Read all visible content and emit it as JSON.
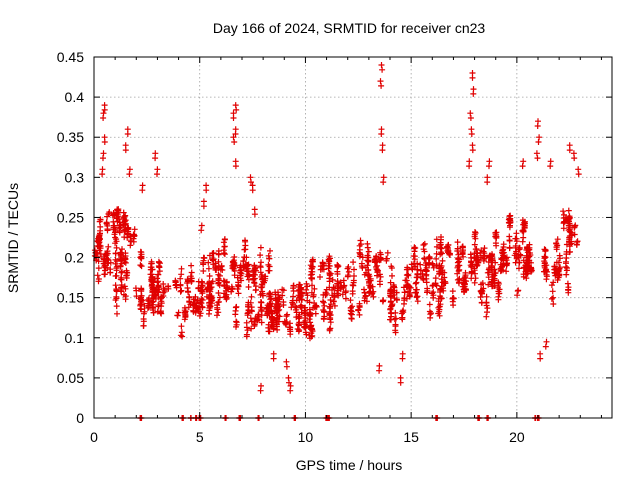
{
  "chart_data": {
    "type": "scatter",
    "title": "Day 166 of 2024, SRMTID for receiver cn23",
    "xlabel": "GPS time / hours",
    "ylabel": "SRMTID / TECUs",
    "xlim": [
      0,
      24.5
    ],
    "ylim": [
      0,
      0.45
    ],
    "grid": true,
    "marker": "+",
    "color": "#e00000",
    "x_ticks": [
      0,
      5,
      10,
      15,
      20
    ],
    "x_tick_labels": [
      "0",
      "5",
      "10",
      "15",
      "20"
    ],
    "y_ticks": [
      0,
      0.05,
      0.1,
      0.15,
      0.2,
      0.25,
      0.3,
      0.35,
      0.4,
      0.45
    ],
    "y_tick_labels": [
      "0",
      "0.05",
      "0.1",
      "0.15",
      "0.2",
      "0.25",
      "0.3",
      "0.35",
      "0.4",
      "0.45"
    ],
    "trend": {
      "x": [
        0,
        0.5,
        1,
        1.5,
        2,
        2.5,
        3,
        3.5,
        4,
        4.5,
        5,
        5.5,
        6,
        6.5,
        7,
        7.5,
        8,
        8.5,
        9,
        9.5,
        10,
        10.5,
        11,
        11.5,
        12,
        12.5,
        13,
        13.5,
        14,
        14.5,
        15,
        15.5,
        16,
        16.5,
        17,
        17.5,
        18,
        18.5,
        19,
        19.5,
        20,
        20.5,
        21,
        21.5,
        22,
        22.5,
        23
      ],
      "y": [
        0.2,
        0.21,
        0.2,
        0.2,
        0.18,
        0.16,
        0.16,
        0.15,
        0.14,
        0.16,
        0.17,
        0.17,
        0.18,
        0.17,
        0.17,
        0.15,
        0.16,
        0.14,
        0.12,
        0.13,
        0.14,
        0.15,
        0.16,
        0.16,
        0.17,
        0.16,
        0.17,
        0.18,
        0.16,
        0.16,
        0.16,
        0.17,
        0.17,
        0.18,
        0.17,
        0.19,
        0.19,
        0.18,
        0.19,
        0.2,
        0.2,
        0.19,
        0.19,
        0.2,
        0.21,
        0.21,
        0.21
      ]
    },
    "spread": [
      0.04,
      0.05,
      0.05,
      0.045,
      0.04,
      0.035,
      0.035,
      0.035,
      0.035,
      0.04,
      0.04,
      0.04,
      0.04,
      0.04,
      0.04,
      0.04,
      0.04,
      0.035,
      0.035,
      0.035,
      0.035,
      0.035,
      0.035,
      0.035,
      0.035,
      0.035,
      0.035,
      0.04,
      0.035,
      0.035,
      0.035,
      0.035,
      0.035,
      0.04,
      0.04,
      0.04,
      0.04,
      0.04,
      0.04,
      0.04,
      0.045,
      0.045,
      0.045,
      0.045,
      0.045,
      0.045,
      0.045
    ],
    "spikes": [
      {
        "x": 0.5,
        "y": 0.39
      },
      {
        "x": 0.45,
        "y": 0.38
      },
      {
        "x": 0.5,
        "y": 0.35
      },
      {
        "x": 0.45,
        "y": 0.33
      },
      {
        "x": 0.4,
        "y": 0.31
      },
      {
        "x": 1.6,
        "y": 0.36
      },
      {
        "x": 1.5,
        "y": 0.34
      },
      {
        "x": 1.7,
        "y": 0.31
      },
      {
        "x": 2.3,
        "y": 0.29
      },
      {
        "x": 2.9,
        "y": 0.33
      },
      {
        "x": 3.0,
        "y": 0.31
      },
      {
        "x": 5.1,
        "y": 0.24
      },
      {
        "x": 5.2,
        "y": 0.27
      },
      {
        "x": 5.3,
        "y": 0.29
      },
      {
        "x": 6.7,
        "y": 0.39
      },
      {
        "x": 6.6,
        "y": 0.38
      },
      {
        "x": 6.7,
        "y": 0.36
      },
      {
        "x": 6.6,
        "y": 0.35
      },
      {
        "x": 6.7,
        "y": 0.32
      },
      {
        "x": 7.4,
        "y": 0.3
      },
      {
        "x": 7.5,
        "y": 0.29
      },
      {
        "x": 7.6,
        "y": 0.26
      },
      {
        "x": 8.5,
        "y": 0.08
      },
      {
        "x": 9.1,
        "y": 0.07
      },
      {
        "x": 9.2,
        "y": 0.05
      },
      {
        "x": 9.3,
        "y": 0.04
      },
      {
        "x": 7.9,
        "y": 0.04
      },
      {
        "x": 13.6,
        "y": 0.44
      },
      {
        "x": 13.55,
        "y": 0.42
      },
      {
        "x": 13.6,
        "y": 0.36
      },
      {
        "x": 13.65,
        "y": 0.34
      },
      {
        "x": 13.7,
        "y": 0.3
      },
      {
        "x": 13.5,
        "y": 0.065
      },
      {
        "x": 14.5,
        "y": 0.05
      },
      {
        "x": 14.6,
        "y": 0.08
      },
      {
        "x": 17.9,
        "y": 0.43
      },
      {
        "x": 17.95,
        "y": 0.41
      },
      {
        "x": 17.8,
        "y": 0.38
      },
      {
        "x": 17.85,
        "y": 0.36
      },
      {
        "x": 17.9,
        "y": 0.34
      },
      {
        "x": 17.75,
        "y": 0.32
      },
      {
        "x": 18.7,
        "y": 0.32
      },
      {
        "x": 18.6,
        "y": 0.3
      },
      {
        "x": 20.3,
        "y": 0.32
      },
      {
        "x": 21.0,
        "y": 0.37
      },
      {
        "x": 21.05,
        "y": 0.35
      },
      {
        "x": 20.95,
        "y": 0.33
      },
      {
        "x": 21.1,
        "y": 0.08
      },
      {
        "x": 21.4,
        "y": 0.095
      },
      {
        "x": 21.6,
        "y": 0.32
      },
      {
        "x": 22.5,
        "y": 0.34
      },
      {
        "x": 22.7,
        "y": 0.33
      },
      {
        "x": 22.9,
        "y": 0.31
      }
    ],
    "zeros_x": [
      2.2,
      4.2,
      4.6,
      4.8,
      5.0,
      6.2,
      6.9,
      7.8,
      9.5,
      11.0,
      11.1,
      16.2,
      18.2,
      18.6,
      20.9,
      21.0
    ],
    "point_count": 2000
  }
}
